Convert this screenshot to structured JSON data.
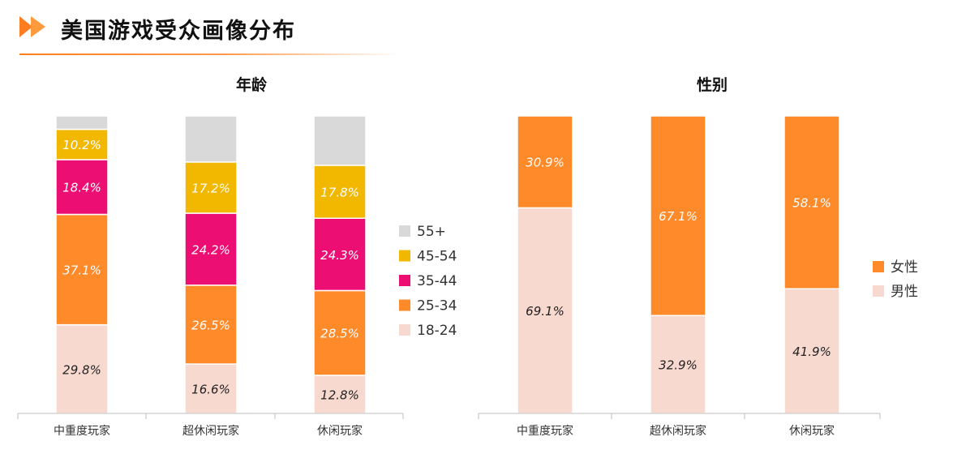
{
  "page": {
    "title": "美国游戏受众画像分布"
  },
  "colors": {
    "accent": "#ff7d1e",
    "age_55_plus": "#d9d9d9",
    "age_45_54": "#f2b800",
    "age_35_44": "#ec0e73",
    "age_25_34": "#ff8a2a",
    "age_18_24": "#f8d9cf",
    "female": "#ff8a2a",
    "male": "#f8d9cf"
  },
  "chart_data": [
    {
      "type": "bar",
      "stacked": true,
      "title": "年龄",
      "categories": [
        "中重度玩家",
        "超休闲玩家",
        "休闲玩家"
      ],
      "series": [
        {
          "name": "18-24",
          "values": [
            29.8,
            16.6,
            12.8
          ],
          "labels": [
            "29.8%",
            "16.6%",
            "12.8%"
          ]
        },
        {
          "name": "25-34",
          "values": [
            37.1,
            26.5,
            28.5
          ],
          "labels": [
            "37.1%",
            "26.5%",
            "28.5%"
          ]
        },
        {
          "name": "35-44",
          "values": [
            18.4,
            24.2,
            24.3
          ],
          "labels": [
            "18.4%",
            "24.2%",
            "24.3%"
          ]
        },
        {
          "name": "45-54",
          "values": [
            10.2,
            17.2,
            17.8
          ],
          "labels": [
            "10.2%",
            "17.2%",
            "17.8%"
          ]
        },
        {
          "name": "55+",
          "values": [
            4.5,
            15.5,
            16.6
          ],
          "labels": [
            "",
            "",
            ""
          ]
        }
      ],
      "legend_order": [
        "55+",
        "45-54",
        "35-44",
        "25-34",
        "18-24"
      ],
      "ylim": [
        0,
        100
      ],
      "legend": "right"
    },
    {
      "type": "bar",
      "stacked": true,
      "title": "性别",
      "categories": [
        "中重度玩家",
        "超休闲玩家",
        "休闲玩家"
      ],
      "series": [
        {
          "name": "男性",
          "values": [
            69.1,
            32.9,
            41.9
          ],
          "labels": [
            "69.1%",
            "32.9%",
            "41.9%"
          ]
        },
        {
          "name": "女性",
          "values": [
            30.9,
            67.1,
            58.1
          ],
          "labels": [
            "30.9%",
            "67.1%",
            "58.1%"
          ]
        }
      ],
      "legend_order": [
        "女性",
        "男性"
      ],
      "ylim": [
        0,
        100
      ],
      "legend": "right"
    }
  ]
}
